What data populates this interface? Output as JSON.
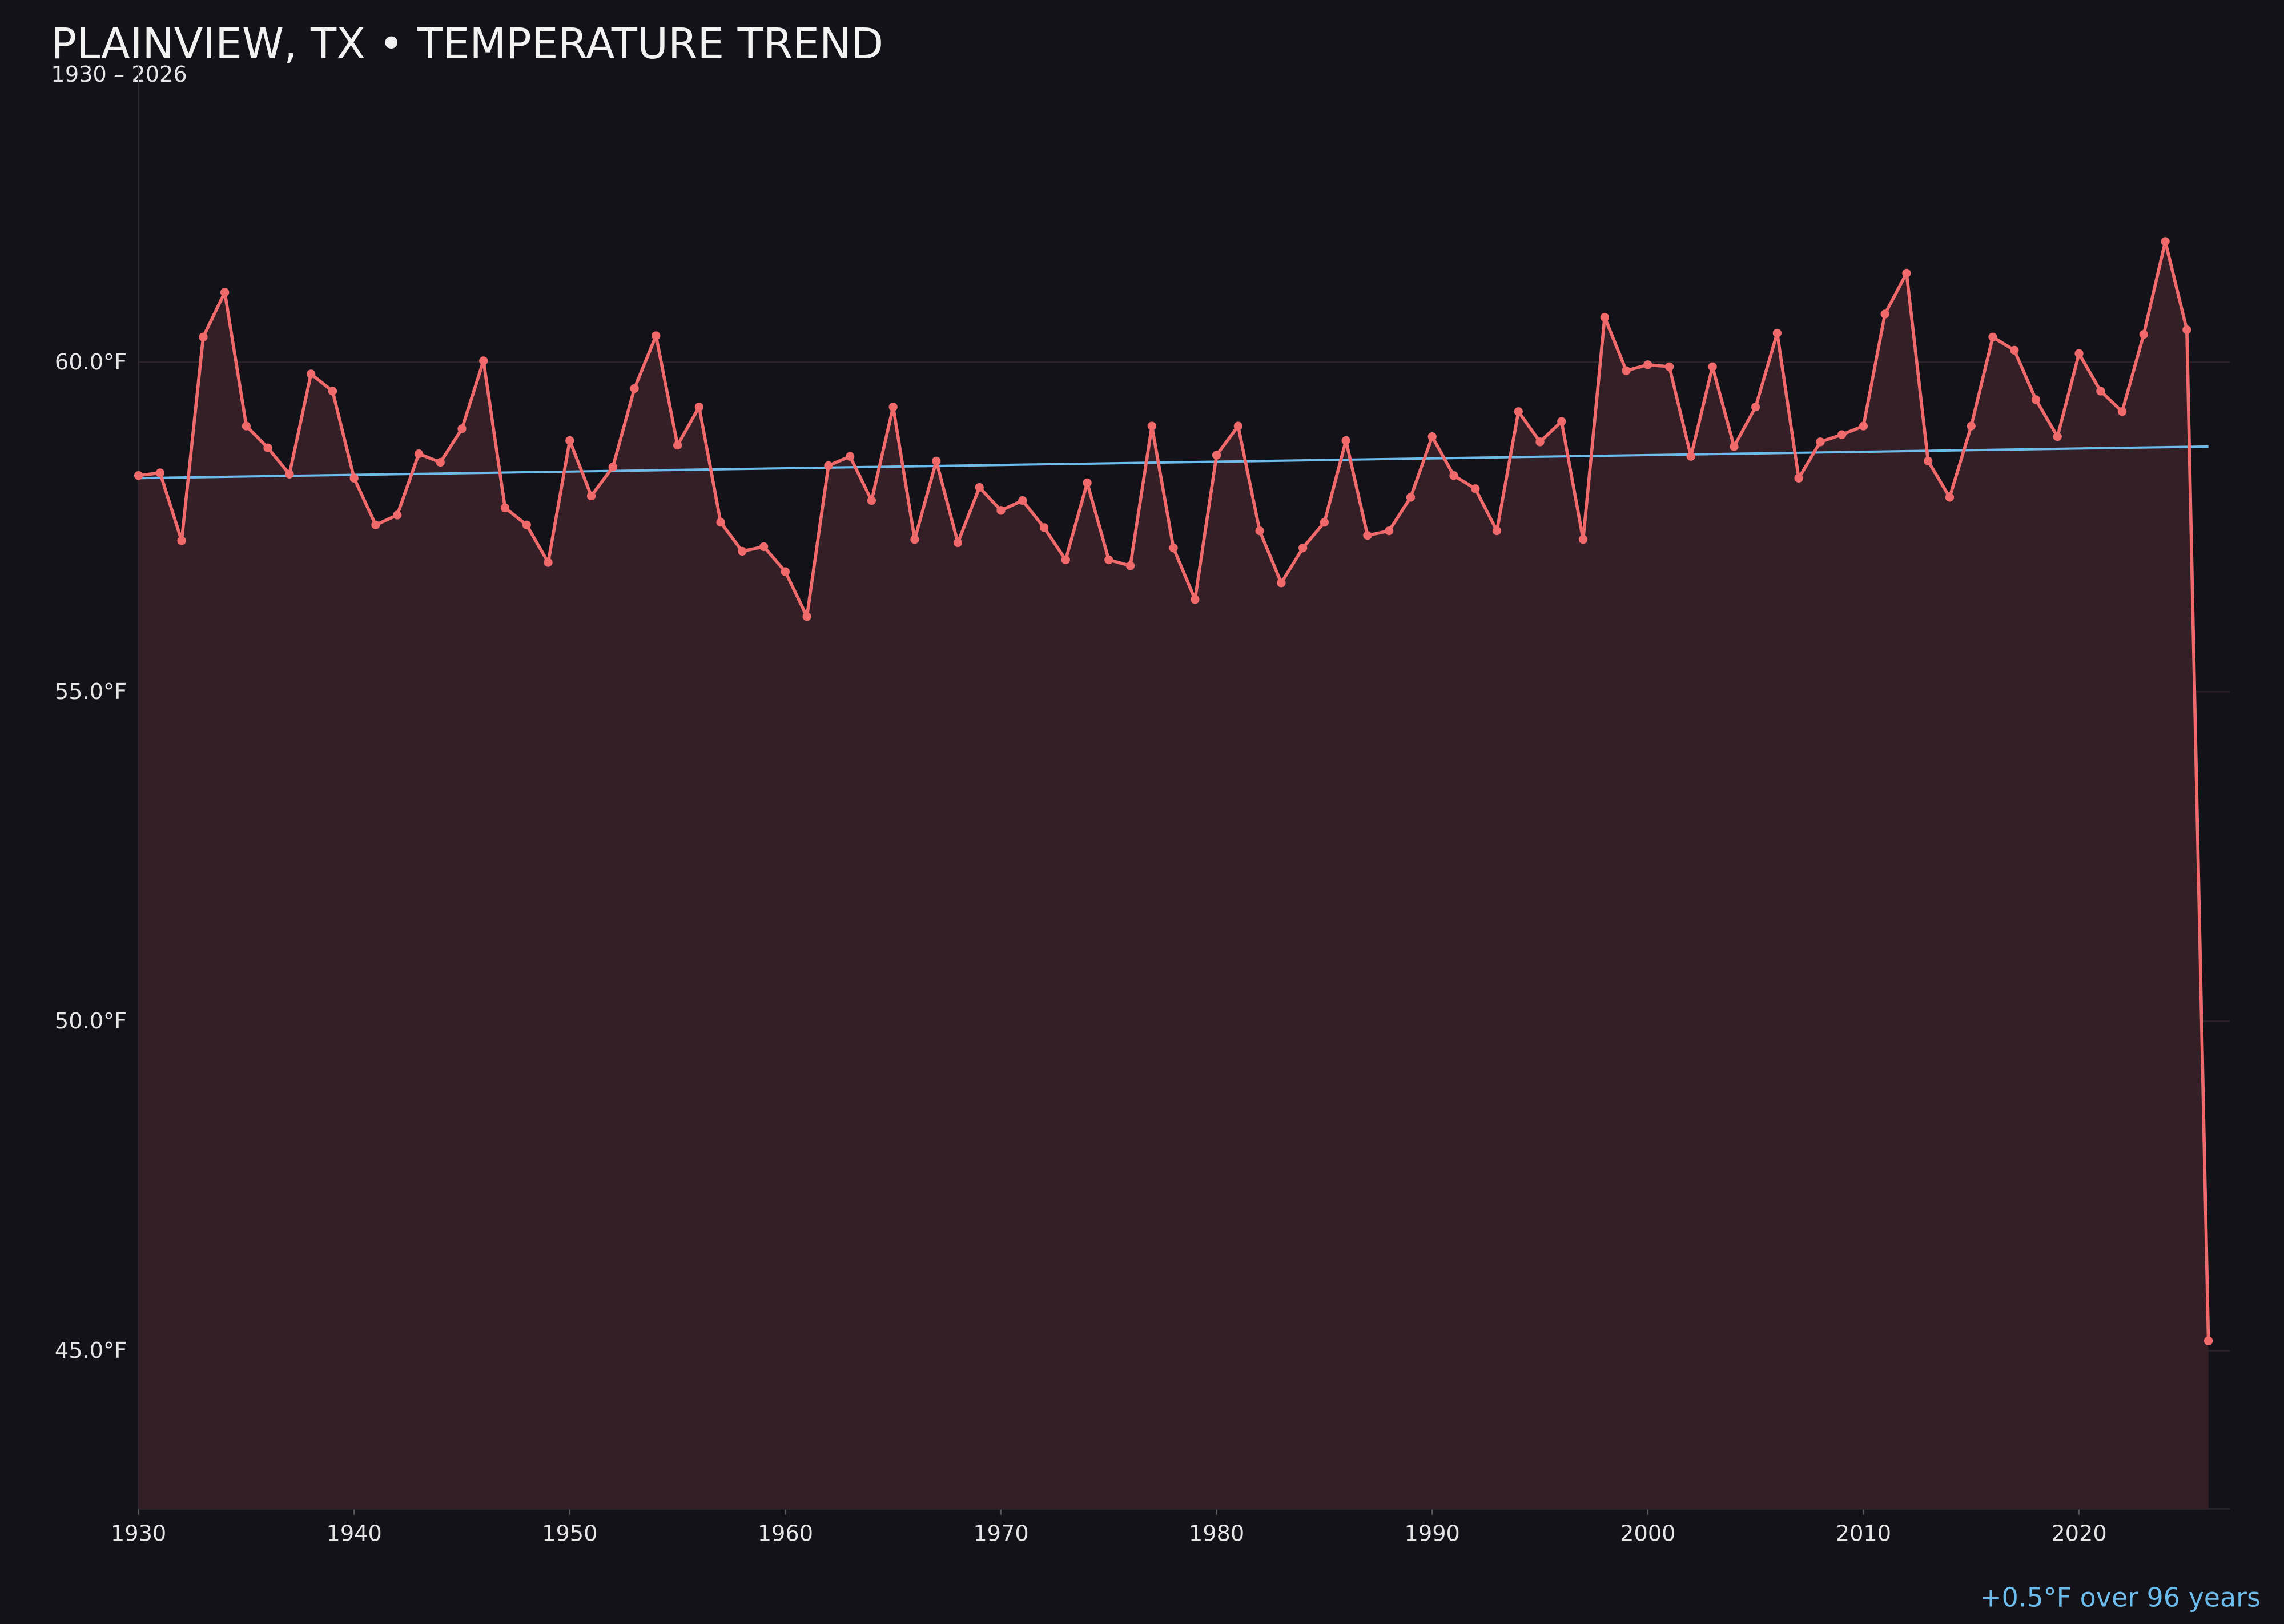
{
  "chart_data": {
    "type": "line",
    "title": "PLAINVIEW, TX • TEMPERATURE TREND",
    "subtitle": "1930 – 2026",
    "annotation": "+0.5°F over 96 years",
    "x": [
      1930,
      1931,
      1932,
      1933,
      1934,
      1935,
      1936,
      1937,
      1938,
      1939,
      1940,
      1941,
      1942,
      1943,
      1944,
      1945,
      1946,
      1947,
      1948,
      1949,
      1950,
      1951,
      1952,
      1953,
      1954,
      1955,
      1956,
      1957,
      1958,
      1959,
      1960,
      1961,
      1962,
      1963,
      1964,
      1965,
      1966,
      1967,
      1968,
      1969,
      1970,
      1971,
      1972,
      1973,
      1974,
      1975,
      1976,
      1977,
      1978,
      1979,
      1980,
      1981,
      1982,
      1983,
      1984,
      1985,
      1986,
      1987,
      1988,
      1989,
      1990,
      1991,
      1992,
      1993,
      1994,
      1995,
      1996,
      1997,
      1998,
      1999,
      2000,
      2001,
      2002,
      2003,
      2004,
      2005,
      2006,
      2007,
      2008,
      2009,
      2010,
      2011,
      2012,
      2013,
      2014,
      2015,
      2016,
      2017,
      2018,
      2019,
      2020,
      2021,
      2022,
      2023,
      2024,
      2025,
      2026
    ],
    "series": [
      {
        "color": "#f06a6c",
        "values": [
          58.28,
          58.32,
          57.29,
          60.38,
          61.06,
          59.03,
          58.7,
          58.3,
          59.82,
          59.56,
          58.24,
          57.53,
          57.68,
          58.61,
          58.48,
          58.99,
          60.02,
          57.79,
          57.53,
          56.96,
          58.81,
          57.97,
          58.41,
          59.6,
          60.4,
          58.74,
          59.32,
          57.57,
          57.13,
          57.2,
          56.82,
          56.14,
          58.43,
          58.57,
          57.9,
          59.32,
          57.31,
          58.5,
          57.26,
          58.1,
          57.75,
          57.9,
          57.49,
          57.0,
          58.17,
          57.0,
          56.91,
          59.03,
          57.18,
          56.4,
          58.59,
          59.03,
          57.44,
          56.65,
          57.18,
          57.57,
          58.81,
          57.37,
          57.44,
          57.95,
          58.87,
          58.28,
          58.08,
          57.44,
          59.25,
          58.79,
          59.1,
          57.31,
          60.68,
          59.87,
          59.96,
          59.93,
          58.57,
          59.93,
          58.72,
          59.32,
          60.44,
          58.24,
          58.79,
          58.9,
          59.03,
          60.73,
          61.35,
          58.5,
          57.95,
          59.03,
          60.38,
          60.18,
          59.43,
          58.87,
          60.13,
          59.56,
          59.25,
          60.42,
          61.83,
          60.49,
          45.15
        ]
      }
    ],
    "trend": {
      "color": "#6cbbea",
      "x": [
        1930,
        2026
      ],
      "values": [
        58.24,
        58.72
      ]
    },
    "fill_color": "#351f26",
    "xlim": [
      1930,
      2027
    ],
    "ylim": [
      42.6,
      64.5
    ],
    "xticks": [
      1930,
      1940,
      1950,
      1960,
      1970,
      1980,
      1990,
      2000,
      2010,
      2020
    ],
    "yticks": [
      {
        "value": 45,
        "label": "45.0°F"
      },
      {
        "value": 50,
        "label": "50.0°F"
      },
      {
        "value": 55,
        "label": "55.0°F"
      },
      {
        "value": 60,
        "label": "60.0°F"
      }
    ],
    "grid": true
  }
}
